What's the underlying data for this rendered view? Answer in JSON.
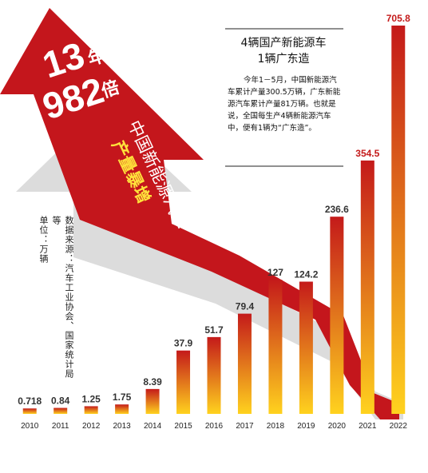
{
  "colors": {
    "arrow": "#c4161c",
    "arrow_shadow": "#d8d8d8",
    "bar_top": "#c41a1a",
    "bar_bottom": "#ffd21e",
    "side_title_color": "#222222",
    "headline_text": "#ffffff",
    "accent_yellow": "#ffe23b"
  },
  "headline": {
    "line1_number": "13",
    "line1_unit": "年",
    "line2_number": "982",
    "line2_unit": "倍",
    "subtitle": "中国新能源汽车",
    "tagline": "产量暴增"
  },
  "source_note": "数据来源：汽车工业协会、国家统计局等",
  "unit_note": "单位：万辆",
  "side_box": {
    "title_line1": "4辆国产新能源车",
    "title_line2": "1辆广东造",
    "body": "今年1－5月，中国新能源汽车累计产量300.5万辆，广东新能源汽车累计产量81万辆。也就是说，全国每生产4辆新能源汽车中，便有1辆为“广东造”。"
  },
  "chart_data": {
    "type": "bar",
    "title": "中国新能源汽车产量暴增",
    "ylabel": "单位：万辆",
    "categories": [
      "2010",
      "2011",
      "2012",
      "2013",
      "2014",
      "2015",
      "2016",
      "2017",
      "2018",
      "2019",
      "2020",
      "2021",
      "2022"
    ],
    "values": [
      0.718,
      0.84,
      1.25,
      1.75,
      8.39,
      37.9,
      51.7,
      79.4,
      127,
      124.2,
      236.6,
      354.5,
      705.8
    ],
    "value_labels": [
      "0.718",
      "0.84",
      "1.25",
      "1.75",
      "8.39",
      "37.9",
      "51.7",
      "79.4",
      "127",
      "124.2",
      "236.6",
      "354.5",
      "705.8"
    ],
    "ylim": [
      0,
      705.8
    ],
    "grid": false,
    "legend": "none"
  }
}
